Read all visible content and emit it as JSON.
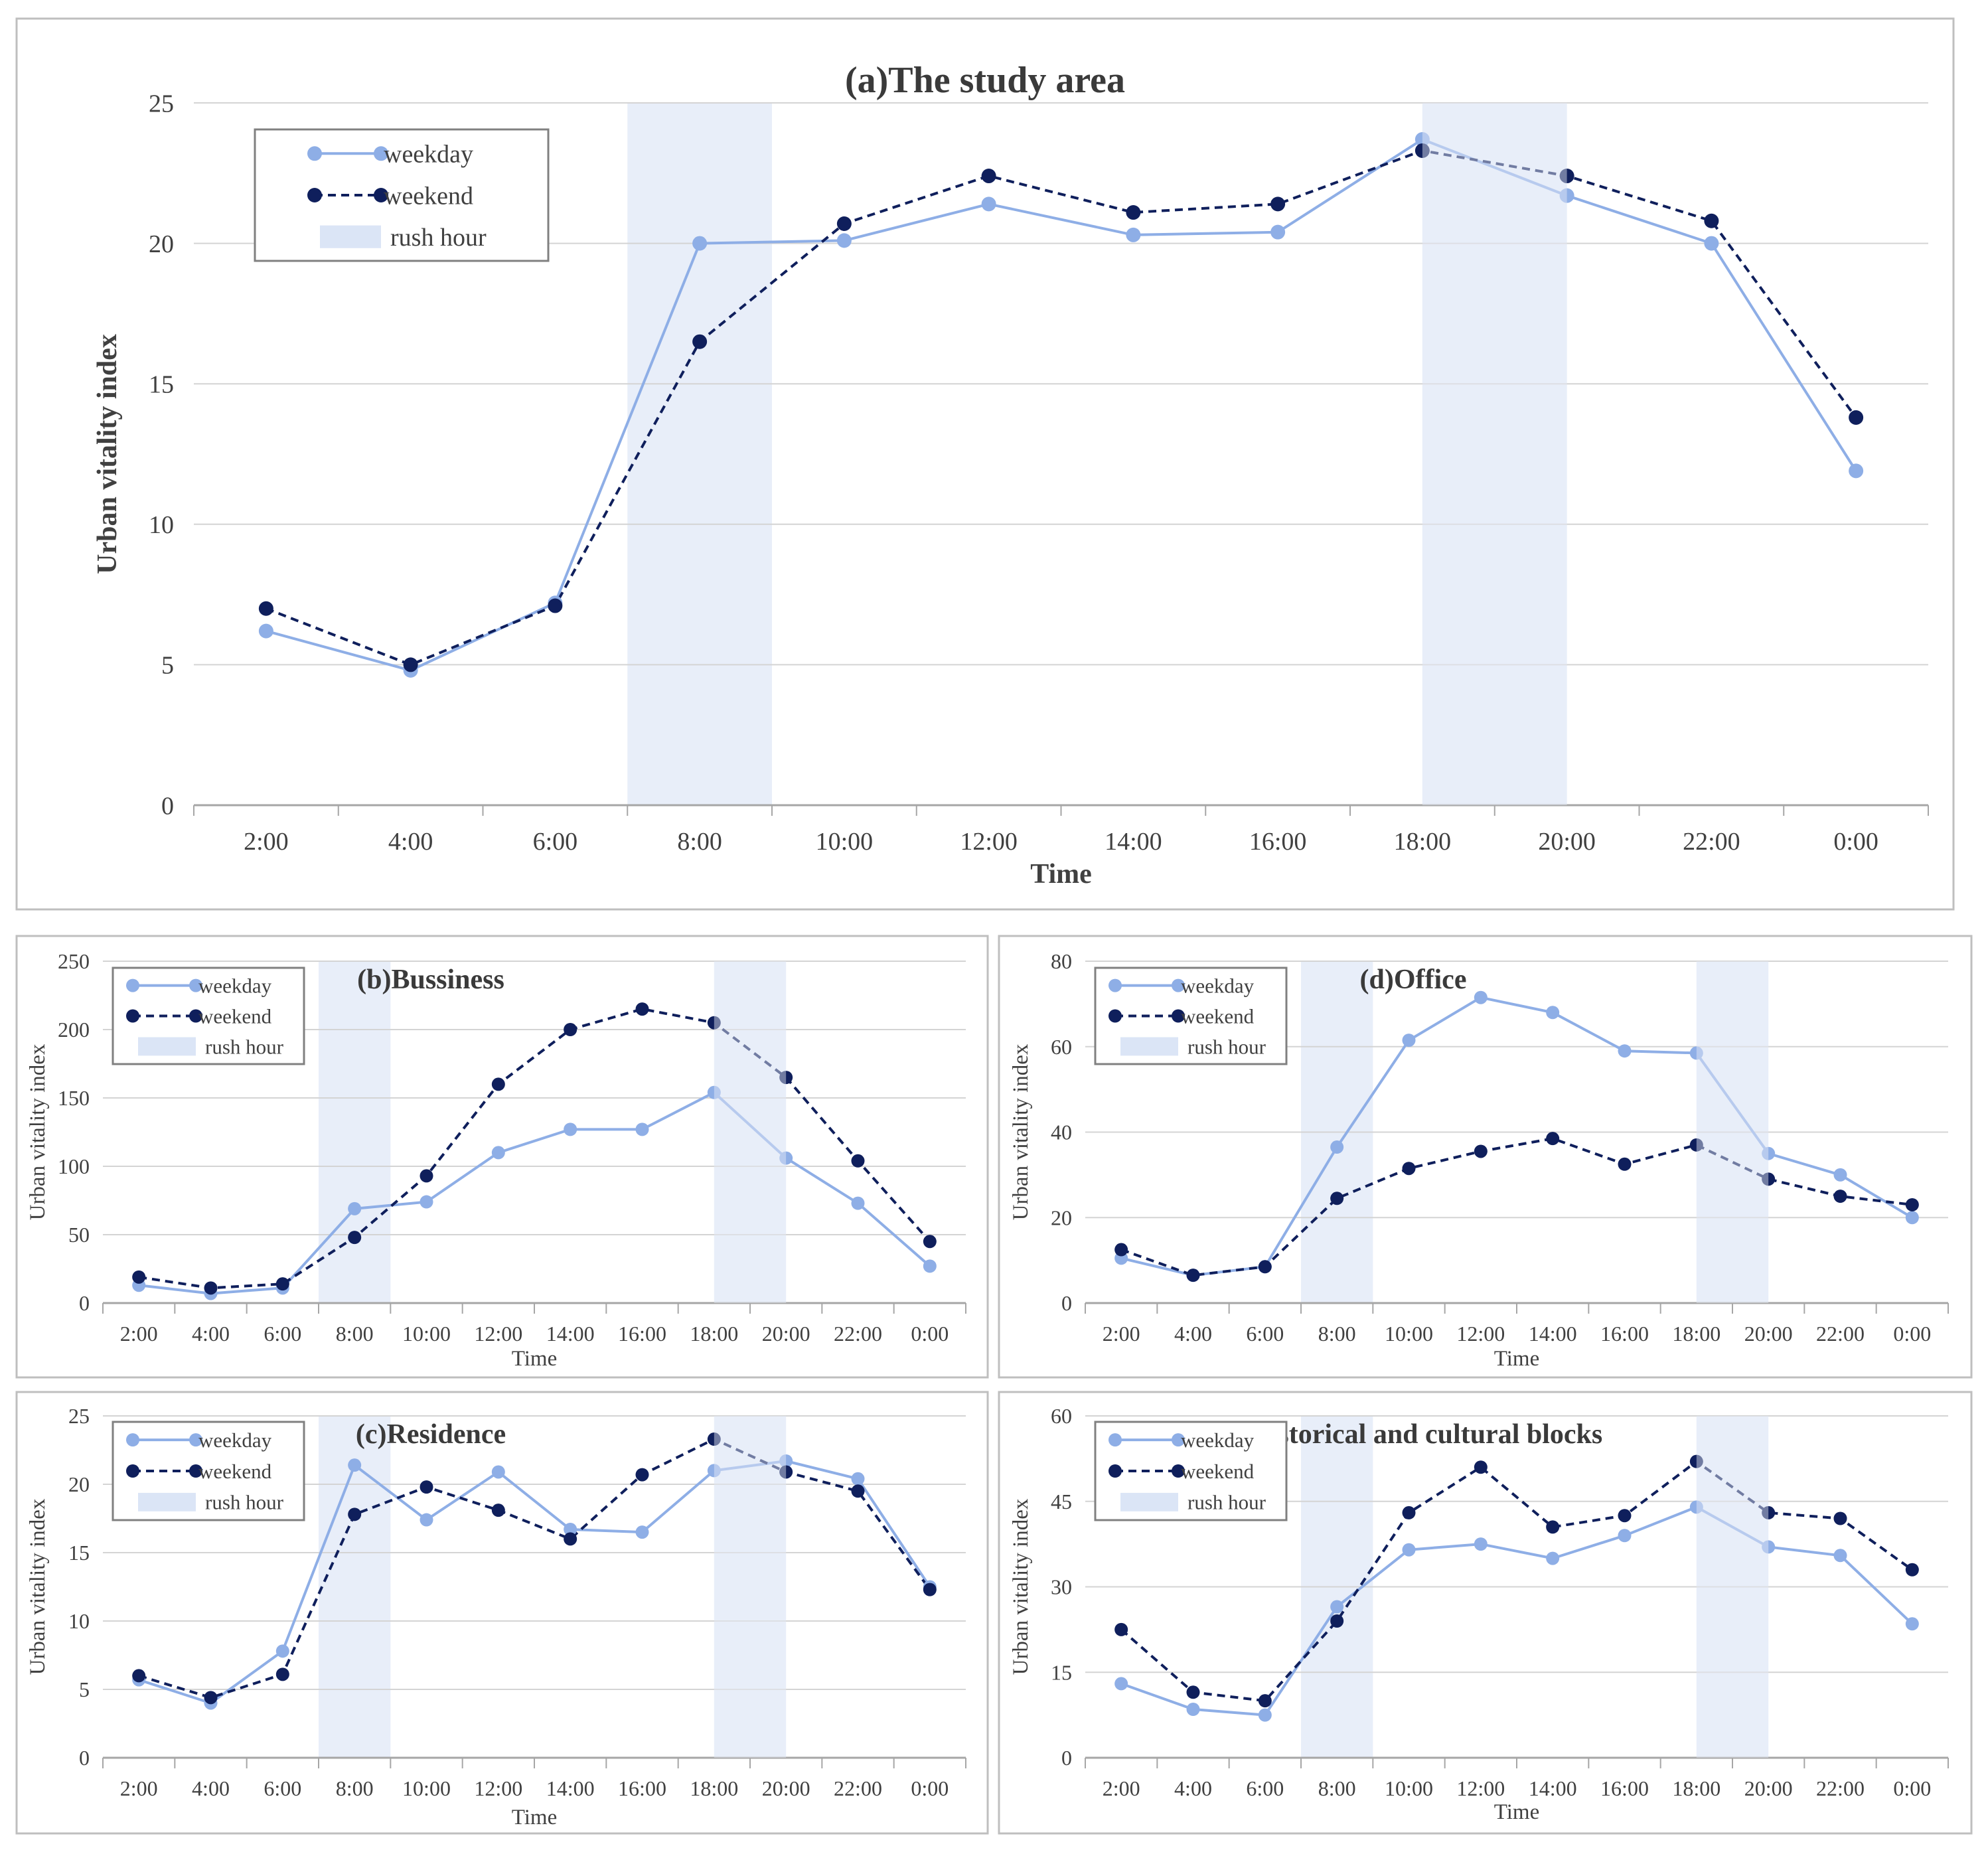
{
  "colors": {
    "weekday": "#8eaee6",
    "weekday_light": "#b7cdef",
    "weekend": "#0f1f5c",
    "weekend_light": "#445a8e",
    "rush": "#e8eef9",
    "grid": "#d4d4d4",
    "axis": "#a6a6a6",
    "frame": "#bfbfbf",
    "text": "#404040"
  },
  "legend": {
    "weekday": "weekday",
    "weekend": "weekend",
    "rush": "rush hour"
  },
  "chart_data": [
    {
      "id": "a",
      "type": "line",
      "title": "(a)The study area",
      "xlabel": "Time",
      "ylabel": "Urban vitality index",
      "categories": [
        "2:00",
        "4:00",
        "6:00",
        "8:00",
        "10:00",
        "12:00",
        "14:00",
        "16:00",
        "18:00",
        "20:00",
        "22:00",
        "0:00"
      ],
      "ylim": [
        0,
        25
      ],
      "yticks": [
        0,
        5,
        10,
        15,
        20,
        25
      ],
      "rush_hours": [
        [
          "7:00",
          "9:00"
        ],
        [
          "18:00",
          "20:00"
        ]
      ],
      "legend_position": "top-left",
      "series": [
        {
          "name": "weekday",
          "values": [
            6.2,
            4.8,
            7.2,
            20.0,
            20.1,
            21.4,
            20.3,
            20.4,
            23.7,
            21.7,
            20.0,
            11.9
          ]
        },
        {
          "name": "weekend",
          "values": [
            7.0,
            5.0,
            7.1,
            16.5,
            20.7,
            22.4,
            21.1,
            21.4,
            23.3,
            22.4,
            20.8,
            13.8
          ]
        }
      ]
    },
    {
      "id": "b",
      "type": "line",
      "title": "(b)Bussiness",
      "xlabel": "Time",
      "ylabel": "Urban vitality index",
      "categories": [
        "2:00",
        "4:00",
        "6:00",
        "8:00",
        "10:00",
        "12:00",
        "14:00",
        "16:00",
        "18:00",
        "20:00",
        "22:00",
        "0:00"
      ],
      "ylim": [
        0,
        250
      ],
      "yticks": [
        0,
        50,
        100,
        150,
        200,
        250
      ],
      "rush_hours": [
        [
          "7:00",
          "9:00"
        ],
        [
          "18:00",
          "20:00"
        ]
      ],
      "legend_position": "top-left",
      "series": [
        {
          "name": "weekday",
          "values": [
            13,
            7,
            11,
            69,
            74,
            110,
            127,
            127,
            154,
            106,
            73,
            27
          ]
        },
        {
          "name": "weekend",
          "values": [
            19,
            11,
            14,
            48,
            93,
            160,
            200,
            215,
            205,
            165,
            104,
            45
          ]
        }
      ]
    },
    {
      "id": "d",
      "type": "line",
      "title": "(d)Office",
      "xlabel": "Time",
      "ylabel": "Urban vitality index",
      "categories": [
        "2:00",
        "4:00",
        "6:00",
        "8:00",
        "10:00",
        "12:00",
        "14:00",
        "16:00",
        "18:00",
        "20:00",
        "22:00",
        "0:00"
      ],
      "ylim": [
        0,
        80
      ],
      "yticks": [
        0,
        20,
        40,
        60,
        80
      ],
      "rush_hours": [
        [
          "7:00",
          "9:00"
        ],
        [
          "18:00",
          "20:00"
        ]
      ],
      "legend_position": "top-left",
      "series": [
        {
          "name": "weekday",
          "values": [
            10.5,
            6.5,
            8.5,
            36.5,
            61.5,
            71.5,
            68.0,
            59.0,
            58.5,
            35.0,
            30.0,
            20.0
          ]
        },
        {
          "name": "weekend",
          "values": [
            12.5,
            6.5,
            8.5,
            24.5,
            31.5,
            35.5,
            38.5,
            32.5,
            37.0,
            29.0,
            25.0,
            23.0
          ]
        }
      ]
    },
    {
      "id": "c",
      "type": "line",
      "title": "(c)Residence",
      "xlabel": "Time",
      "ylabel": "Urban vitality index",
      "categories": [
        "2:00",
        "4:00",
        "6:00",
        "8:00",
        "10:00",
        "12:00",
        "14:00",
        "16:00",
        "18:00",
        "20:00",
        "22:00",
        "0:00"
      ],
      "ylim": [
        0,
        25
      ],
      "yticks": [
        0,
        5,
        10,
        15,
        20,
        25
      ],
      "rush_hours": [
        [
          "7:00",
          "9:00"
        ],
        [
          "18:00",
          "20:00"
        ]
      ],
      "legend_position": "top-left",
      "series": [
        {
          "name": "weekday",
          "values": [
            5.7,
            4.0,
            7.8,
            21.4,
            17.4,
            20.9,
            16.7,
            16.5,
            21.0,
            21.7,
            20.4,
            12.5
          ]
        },
        {
          "name": "weekend",
          "values": [
            6.0,
            4.4,
            6.1,
            17.8,
            19.8,
            18.1,
            16.0,
            20.7,
            23.3,
            20.9,
            19.5,
            12.3
          ]
        }
      ]
    },
    {
      "id": "e",
      "type": "line",
      "title": "(e)historical and cultural blocks",
      "xlabel": "Time",
      "ylabel": "Urban vitality index",
      "categories": [
        "2:00",
        "4:00",
        "6:00",
        "8:00",
        "10:00",
        "12:00",
        "14:00",
        "16:00",
        "18:00",
        "20:00",
        "22:00",
        "0:00"
      ],
      "ylim": [
        0,
        60
      ],
      "yticks": [
        0,
        15,
        30,
        45,
        60
      ],
      "rush_hours": [
        [
          "7:00",
          "9:00"
        ],
        [
          "18:00",
          "20:00"
        ]
      ],
      "legend_position": "top-left",
      "series": [
        {
          "name": "weekday",
          "values": [
            13.0,
            8.5,
            7.5,
            26.5,
            36.5,
            37.5,
            35.0,
            39.0,
            44.0,
            37.0,
            35.5,
            23.5
          ]
        },
        {
          "name": "weekend",
          "values": [
            22.5,
            11.5,
            10.0,
            24.0,
            43.0,
            51.0,
            40.5,
            42.5,
            52.0,
            43.0,
            42.0,
            33.0
          ]
        }
      ]
    }
  ]
}
